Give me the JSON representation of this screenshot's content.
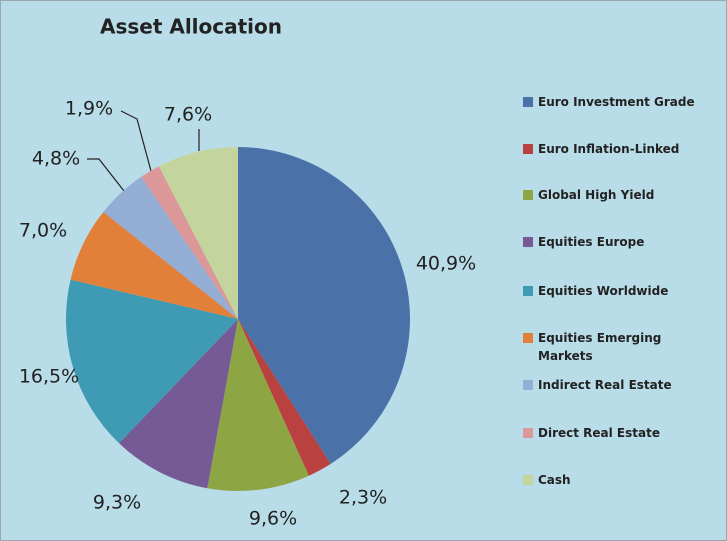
{
  "chart_data": {
    "type": "pie",
    "title": "Asset Allocation",
    "categories": [
      "Euro Investment Grade",
      "Euro Inflation-Linked",
      "Global High Yield",
      "Equities Europe",
      "Equities Worldwide",
      "Equities Emerging Markets",
      "Indirect Real Estate",
      "Direct Real Estate",
      "Cash"
    ],
    "values": [
      40.9,
      2.3,
      9.6,
      9.3,
      16.5,
      7.0,
      4.8,
      1.9,
      7.6
    ],
    "value_labels": [
      "40,9%",
      "2,3%",
      "9,6%",
      "9,3%",
      "16,5%",
      "7,0%",
      "4,8%",
      "1,9%",
      "7,6%"
    ],
    "colors": [
      "#4a72a8",
      "#b9413f",
      "#8ea544",
      "#765a96",
      "#3f9ab4",
      "#e2803a",
      "#94add4",
      "#dc9898",
      "#c3d59c"
    ]
  }
}
